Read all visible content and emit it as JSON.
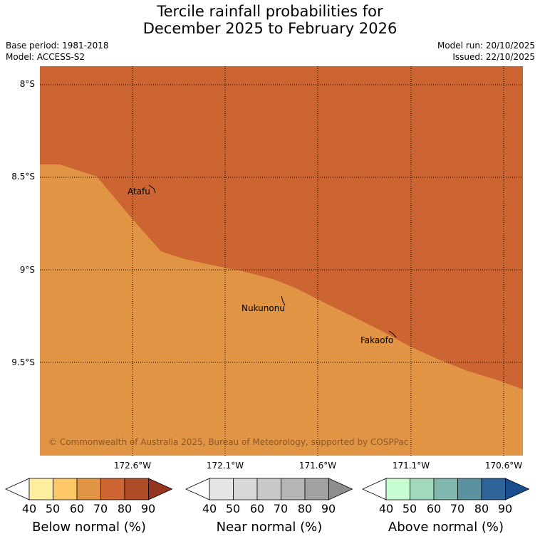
{
  "title_line1": "Tercile rainfall probabilities for",
  "title_line2": "December 2025 to February 2026",
  "base_period": "Base period: 1981-2018",
  "model": "Model: ACCESS-S2",
  "model_run": "Model run: 20/10/2025",
  "issued": "Issued: 22/10/2025",
  "lat_labels": [
    "8°S",
    "8.5°S",
    "9°S",
    "9.5°S"
  ],
  "lon_labels": [
    "172.6°W",
    "172.1°W",
    "171.6°W",
    "171.1°W",
    "170.6°W"
  ],
  "places": [
    "Atafu",
    "Nukunonu",
    "Fakaofo"
  ],
  "copyright": "© Commonwealth of Australia 2025, Bureau of Meteorology, supported by COSPPac",
  "colors": {
    "below_70_80": "#cc6531",
    "below_60_70": "#e09444"
  },
  "colorbars": [
    {
      "title": "Below normal (%)",
      "ticks": [
        "40",
        "50",
        "60",
        "70",
        "80",
        "90"
      ],
      "colors": [
        "#ffffff",
        "#ffeea0",
        "#fdc966",
        "#e09444",
        "#cc6531",
        "#ae4c28",
        "#943522"
      ]
    },
    {
      "title": "Near normal (%)",
      "ticks": [
        "40",
        "50",
        "60",
        "70",
        "80",
        "90"
      ],
      "colors": [
        "#ffffff",
        "#e6e6e6",
        "#d8d8d8",
        "#c8c8c8",
        "#b6b6b6",
        "#a2a2a2",
        "#8e8e8e"
      ]
    },
    {
      "title": "Above normal (%)",
      "ticks": [
        "40",
        "50",
        "60",
        "70",
        "80",
        "90"
      ],
      "colors": [
        "#ffffff",
        "#c8fcd1",
        "#a2d8bc",
        "#80b8b0",
        "#5a92a0",
        "#2e6499",
        "#1a4f8f"
      ]
    }
  ]
}
